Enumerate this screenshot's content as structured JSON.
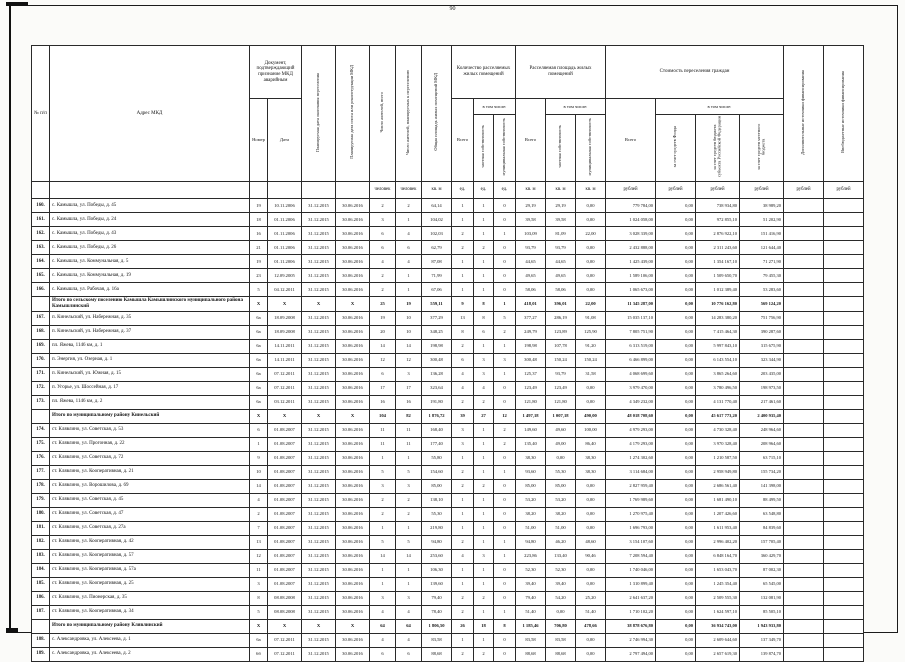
{
  "page": {
    "number": "90"
  },
  "table": {
    "header": {
      "col_num": "№ п/п",
      "col_address": "Адрес МКД",
      "group_doc": "Документ, подтверждающий признание МКД аварийным",
      "doc_number": "Номер",
      "doc_date": "Дата",
      "col_end_date": "Планируемая дата окончания переселения",
      "col_demolition_date": "Планируемая дата сноса или реконструкции МКД",
      "col_residents_total": "Число жителей, всего",
      "col_residents_planned": "Число жителей, планируемых к переселению",
      "col_total_area": "Общая площадь жилых помещений МКД",
      "group_units": "Количество расселяемых жилых помещений",
      "group_area": "Расселяемая площадь жилых помещений",
      "group_cost": "Стоимость переселения граждан",
      "subtotal_label": "Всего",
      "including_label": "в том числе:",
      "private_label": "частная собственность",
      "municipal_label": "муниципальная собственность",
      "cost_fund": "за счет средств Фонда",
      "cost_subject": "за счет средств бюджета субъекта Российской Федерации",
      "cost_local": "за счет средств местного бюджета",
      "col_additional": "Дополнительные источники финансирования",
      "col_extrabudget": "Внебюджетные источники финансирования",
      "units": [
        "человек",
        "человек",
        "кв. м",
        "ед.",
        "ед.",
        "ед.",
        "кв. м",
        "кв. м",
        "кв. м",
        "рублей",
        "рублей",
        "рублей",
        "рублей",
        "рублей",
        "рублей"
      ]
    },
    "rows": [
      {
        "num": "160.",
        "address": "с. Камышла, ул. Победы, д. 45",
        "summary": false,
        "cells": [
          "19",
          "10.11.2006",
          "31.12.2015",
          "30.06.2016",
          "2",
          "2",
          "64,14",
          "1",
          "1",
          "0",
          "29,19",
          "29,19",
          "0,00",
          "779 784,00",
          "0,00",
          "738 934,80",
          "38 989,20",
          "",
          ""
        ]
      },
      {
        "num": "161.",
        "address": "с. Камышла, ул. Победы, д. 24",
        "summary": false,
        "cells": [
          "18",
          "01.11.2006",
          "31.12.2015",
          "30.06.2016",
          "3",
          "1",
          "104,02",
          "1",
          "1",
          "0",
          "39,58",
          "39,58",
          "0,00",
          "1 024 058,00",
          "0,00",
          "972 855,10",
          "51 202,90",
          "",
          ""
        ]
      },
      {
        "num": "162.",
        "address": "с. Камышла, ул. Победы, д. 43",
        "summary": false,
        "cells": [
          "16",
          "01.11.2006",
          "31.12.2015",
          "30.06.2016",
          "6",
          "4",
          "102,03",
          "2",
          "1",
          "1",
          "103,09",
          "81,09",
          "22,00",
          "3 028 339,00",
          "0,00",
          "2 876 922,10",
          "151 416,90",
          "",
          ""
        ]
      },
      {
        "num": "163.",
        "address": "с. Камышла, ул. Победы, д. 26",
        "summary": false,
        "cells": [
          "21",
          "01.11.2006",
          "31.12.2015",
          "30.06.2016",
          "6",
          "6",
          "62,79",
          "2",
          "2",
          "0",
          "93,79",
          "93,79",
          "0,00",
          "2 432 888,00",
          "0,00",
          "2 311 243,60",
          "121 644,40",
          "",
          ""
        ]
      },
      {
        "num": "164.",
        "address": "с. Камышла, ул. Коммунальная, д. 5",
        "summary": false,
        "cells": [
          "19",
          "01.11.2006",
          "31.12.2015",
          "30.06.2016",
          "4",
          "4",
          "87,08",
          "1",
          "1",
          "0",
          "44,65",
          "44,65",
          "0,00",
          "1 425 439,00",
          "0,00",
          "1 354 167,10",
          "71 271,90",
          "",
          ""
        ]
      },
      {
        "num": "165.",
        "address": "с. Камышла, ул. Коммунальная, д. 19",
        "summary": false,
        "cells": [
          "23",
          "12.09.2005",
          "31.12.2015",
          "30.06.2016",
          "2",
          "1",
          "71,99",
          "1",
          "1",
          "0",
          "49,65",
          "49,65",
          "0,00",
          "1 589 106,00",
          "0,00",
          "1 509 650,70",
          "79 455,30",
          "",
          ""
        ]
      },
      {
        "num": "166.",
        "address": "с. Камышла, ул. Рабочая, д. 16а",
        "summary": false,
        "cells": [
          "5",
          "04.12.2011",
          "31.12.2015",
          "30.06.2016",
          "2",
          "1",
          "67,06",
          "1",
          "1",
          "0",
          "58,06",
          "58,06",
          "0,00",
          "1 065 673,00",
          "0,00",
          "1 012 389,40",
          "53 283,60",
          "",
          ""
        ]
      },
      {
        "num": "",
        "address": "Итого по сельскому поселению Камышла Камышлинского муниципального района Камышлинский",
        "summary": true,
        "cells": [
          "X",
          "X",
          "X",
          "X",
          "25",
          "19",
          "559,11",
          "9",
          "8",
          "1",
          "418,01",
          "396,01",
          "22,00",
          "11 345 287,00",
          "0,00",
          "10 776 162,80",
          "569 124,20",
          "",
          ""
        ]
      },
      {
        "num": "167.",
        "address": "п. Кинельский, ул. Набережная, д. 35",
        "summary": false,
        "cells": [
          "6а",
          "18.09.2008",
          "31.12.2015",
          "30.06.2016",
          "19",
          "10",
          "377,29",
          "13",
          "8",
          "5",
          "377,27",
          "286,19",
          "91,08",
          "15 035 137,10",
          "0,00",
          "14 283 380,20",
          "751 756,90",
          "",
          ""
        ]
      },
      {
        "num": "168.",
        "address": "п. Кинельский, ул. Набережная, д. 37",
        "summary": false,
        "cells": [
          "6а",
          "18.09.2008",
          "31.12.2015",
          "30.06.2016",
          "20",
          "10",
          "348,25",
          "8",
          "6",
          "2",
          "249,79",
          "123,89",
          "125,90",
          "7 805 751,90",
          "0,00",
          "7 415 464,30",
          "390 287,60",
          "",
          ""
        ]
      },
      {
        "num": "169.",
        "address": "пл. Яжева, 1146 км, д. 1",
        "summary": false,
        "cells": [
          "6а",
          "14.11.2011",
          "31.12.2015",
          "30.06.2016",
          "14",
          "14",
          "198,98",
          "2",
          "1",
          "1",
          "198,98",
          "107,78",
          "91,20",
          "6 313 519,00",
          "0,00",
          "5 997 843,10",
          "315 675,90",
          "",
          ""
        ]
      },
      {
        "num": "170.",
        "address": "п. Энергия, ул. Озерная, д. 1",
        "summary": false,
        "cells": [
          "6а",
          "14.11.2011",
          "31.12.2015",
          "30.06.2016",
          "12",
          "12",
          "300,48",
          "6",
          "3",
          "3",
          "300,48",
          "150,24",
          "150,24",
          "6 466 899,00",
          "0,00",
          "6 143 554,10",
          "323 344,90",
          "",
          ""
        ]
      },
      {
        "num": "171.",
        "address": "п. Кинельский, ул. Южная, д. 15",
        "summary": false,
        "cells": [
          "6а",
          "07.12.2011",
          "31.12.2015",
          "30.06.2016",
          "6",
          "3",
          "136,28",
          "4",
          "3",
          "1",
          "125,37",
          "93,79",
          "31,58",
          "4 068 699,60",
          "0,00",
          "3 865 264,60",
          "203 435,00",
          "",
          ""
        ]
      },
      {
        "num": "172.",
        "address": "п. Угорье, ул. Шоссейная, д. 17",
        "summary": false,
        "cells": [
          "6а",
          "07.12.2011",
          "31.12.2015",
          "30.06.2016",
          "17",
          "17",
          "323,64",
          "4",
          "4",
          "0",
          "123,49",
          "123,49",
          "0,00",
          "3 979 470,00",
          "0,00",
          "3 780 496,50",
          "198 973,50",
          "",
          ""
        ]
      },
      {
        "num": "173.",
        "address": "пл. Яжева, 1146 км, д. 2",
        "summary": false,
        "cells": [
          "6а",
          "03.12.2011",
          "31.12.2015",
          "30.06.2016",
          "16",
          "16",
          "191,80",
          "2",
          "2",
          "0",
          "121,80",
          "121,80",
          "0,00",
          "4 349 232,00",
          "0,00",
          "4 131 770,40",
          "217 461,60",
          "",
          ""
        ]
      },
      {
        "num": "",
        "address": "Итого по муниципальному району Кинельский",
        "summary": true,
        "cells": [
          "X",
          "X",
          "X",
          "X",
          "104",
          "82",
          "1 876,72",
          "39",
          "27",
          "12",
          "1 497,18",
          "1 007,18",
          "490,00",
          "48 018 708,60",
          "0,00",
          "45 617 773,20",
          "2 400 935,40",
          "",
          ""
        ]
      },
      {
        "num": "174.",
        "address": "ст. Клявлино, ул. Советская, д. 53",
        "summary": false,
        "cells": [
          "6",
          "01.08.2007",
          "31.12.2015",
          "30.06.2016",
          "11",
          "11",
          "168,40",
          "3",
          "1",
          "2",
          "149,60",
          "49,60",
          "100,00",
          "4 979 293,00",
          "0,00",
          "4 730 328,40",
          "248 964,60",
          "",
          ""
        ]
      },
      {
        "num": "175.",
        "address": "ст. Клявлино, ул. Прогонная, д. 22",
        "summary": false,
        "cells": [
          "1",
          "01.08.2007",
          "31.12.2015",
          "30.06.2016",
          "11",
          "11",
          "177,40",
          "3",
          "1",
          "2",
          "135,40",
          "49,00",
          "86,40",
          "4 179 293,00",
          "0,00",
          "3 970 328,40",
          "208 964,60",
          "",
          ""
        ]
      },
      {
        "num": "176.",
        "address": "ст. Клявлино, ул. Советская, д. 72",
        "summary": false,
        "cells": [
          "9",
          "01.08.2007",
          "31.12.2015",
          "30.06.2016",
          "1",
          "1",
          "55,80",
          "1",
          "1",
          "0",
          "38,30",
          "0,00",
          "38,30",
          "1 274 302,60",
          "0,00",
          "1 210 587,50",
          "63 715,10",
          "",
          ""
        ]
      },
      {
        "num": "177.",
        "address": "ст. Клявлино, ул. Кооперативная, д. 21",
        "summary": false,
        "cells": [
          "10",
          "01.08.2007",
          "31.12.2015",
          "30.06.2016",
          "5",
          "5",
          "154,60",
          "2",
          "1",
          "1",
          "93,60",
          "55,30",
          "38,30",
          "3 114 684,00",
          "0,00",
          "2 958 949,80",
          "155 734,20",
          "",
          ""
        ]
      },
      {
        "num": "178.",
        "address": "ст. Клявлино, ул. Ворошилова, д. 69",
        "summary": false,
        "cells": [
          "14",
          "01.08.2007",
          "31.12.2015",
          "30.06.2016",
          "3",
          "3",
          "85,00",
          "2",
          "2",
          "0",
          "85,00",
          "85,00",
          "0,00",
          "2 827 959,40",
          "0,00",
          "2 686 561,40",
          "141 398,00",
          "",
          ""
        ]
      },
      {
        "num": "179.",
        "address": "ст. Клявлино, ул. Советская, д. 45",
        "summary": false,
        "cells": [
          "4",
          "01.08.2007",
          "31.12.2015",
          "30.06.2016",
          "2",
          "2",
          "138,10",
          "1",
          "1",
          "0",
          "53,20",
          "53,20",
          "0,00",
          "1 769 989,60",
          "0,00",
          "1 681 490,10",
          "88 499,50",
          "",
          ""
        ]
      },
      {
        "num": "180.",
        "address": "ст. Клявлино, ул. Советская, д. 47",
        "summary": false,
        "cells": [
          "2",
          "01.08.2007",
          "31.12.2015",
          "30.06.2016",
          "2",
          "2",
          "55,30",
          "1",
          "1",
          "0",
          "38,20",
          "38,20",
          "0,00",
          "1 270 975,40",
          "0,00",
          "1 207 426,60",
          "63 548,80",
          "",
          ""
        ]
      },
      {
        "num": "181.",
        "address": "ст. Клявлино, ул. Советская, д. 27а",
        "summary": false,
        "cells": [
          "7",
          "01.08.2007",
          "31.12.2015",
          "30.06.2016",
          "1",
          "1",
          "219,80",
          "1",
          "1",
          "0",
          "51,00",
          "51,00",
          "0,00",
          "1 696 793,00",
          "0,00",
          "1 611 953,40",
          "84 839,60",
          "",
          ""
        ]
      },
      {
        "num": "182.",
        "address": "ст. Клявлино, ул. Кооперативная, д. 42",
        "summary": false,
        "cells": [
          "13",
          "01.08.2007",
          "31.12.2015",
          "30.06.2016",
          "5",
          "5",
          "94,80",
          "2",
          "1",
          "1",
          "94,80",
          "46,20",
          "48,60",
          "3 154 107,60",
          "0,00",
          "2 996 402,20",
          "157 705,40",
          "",
          ""
        ]
      },
      {
        "num": "183.",
        "address": "ст. Клявлино, ул. Кооперативная, д. 57",
        "summary": false,
        "cells": [
          "12",
          "01.08.2007",
          "31.12.2015",
          "30.06.2016",
          "14",
          "14",
          "253,60",
          "4",
          "3",
          "1",
          "223,86",
          "133,40",
          "90,46",
          "7 208 594,40",
          "0,00",
          "6 848 164,70",
          "360 429,70",
          "",
          ""
        ]
      },
      {
        "num": "184.",
        "address": "ст. Клявлино, ул. Кооперативная, д. 57а",
        "summary": false,
        "cells": [
          "11",
          "01.08.2007",
          "31.12.2015",
          "30.06.2016",
          "1",
          "1",
          "106,30",
          "1",
          "1",
          "0",
          "52,30",
          "52,30",
          "0,00",
          "1 740 046,00",
          "0,00",
          "1 653 043,70",
          "87 002,30",
          "",
          ""
        ]
      },
      {
        "num": "185.",
        "address": "ст. Клявлино, ул. Кооперативная, д. 25",
        "summary": false,
        "cells": [
          "3",
          "01.08.2007",
          "31.12.2015",
          "30.06.2016",
          "1",
          "1",
          "139,60",
          "1",
          "1",
          "0",
          "39,40",
          "39,40",
          "0,00",
          "1 310 899,40",
          "0,00",
          "1 245 354,40",
          "65 545,00",
          "",
          ""
        ]
      },
      {
        "num": "186.",
        "address": "ст. Клявлино, ул. Пионерская, д. 35",
        "summary": false,
        "cells": [
          "8",
          "08.08.2008",
          "31.12.2015",
          "30.06.2016",
          "3",
          "3",
          "79,40",
          "2",
          "2",
          "0",
          "79,40",
          "54,20",
          "25,20",
          "2 641 637,20",
          "0,00",
          "2 509 555,30",
          "132 081,90",
          "",
          ""
        ]
      },
      {
        "num": "187.",
        "address": "ст. Клявлино, ул. Кооперативная, д. 34",
        "summary": false,
        "cells": [
          "5",
          "08.08.2008",
          "31.12.2015",
          "30.06.2016",
          "4",
          "4",
          "78,40",
          "2",
          "1",
          "1",
          "51,40",
          "0,00",
          "51,40",
          "1 710 102,20",
          "0,00",
          "1 624 597,10",
          "85 505,10",
          "",
          ""
        ]
      },
      {
        "num": "",
        "address": "Итого по муниципальному району Клявлинский",
        "summary": true,
        "cells": [
          "X",
          "X",
          "X",
          "X",
          "64",
          "64",
          "1 806,50",
          "26",
          "18",
          "8",
          "1 185,46",
          "706,80",
          "478,66",
          "38 878 676,80",
          "0,00",
          "36 934 743,00",
          "1 943 933,80",
          "",
          ""
        ]
      },
      {
        "num": "188.",
        "address": "с. Александровка, ул. Алексеева, д. 1",
        "summary": false,
        "cells": [
          "6а",
          "07.12.2011",
          "31.12.2015",
          "30.06.2016",
          "4",
          "4",
          "83,58",
          "1",
          "1",
          "0",
          "83,58",
          "83,58",
          "0,00",
          "2 746 994,30",
          "0,00",
          "2 609 644,60",
          "137 349,70",
          "",
          ""
        ]
      },
      {
        "num": "189.",
        "address": "с. Александровка, ул. Алексеева, д. 2",
        "summary": false,
        "cells": [
          "6б",
          "07.12.2011",
          "31.12.2015",
          "30.06.2016",
          "6",
          "6",
          "88,68",
          "2",
          "2",
          "0",
          "88,68",
          "88,68",
          "0,00",
          "2 797 494,00",
          "0,00",
          "2 657 619,30",
          "139 874,70",
          "",
          ""
        ]
      }
    ]
  }
}
